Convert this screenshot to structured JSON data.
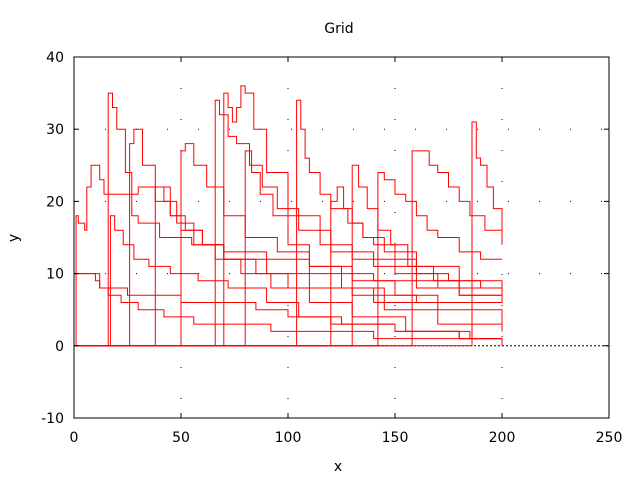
{
  "chart_data": {
    "type": "line",
    "title": "Grid",
    "xlabel": "x",
    "ylabel": "y",
    "xlim": [
      0,
      250
    ],
    "ylim": [
      -10,
      40
    ],
    "xticks": [
      0,
      50,
      100,
      150,
      200,
      250
    ],
    "xtick_labels": [
      "0",
      "50",
      "100",
      "150",
      "200",
      "250"
    ],
    "yticks": [
      -10,
      0,
      10,
      20,
      30,
      40
    ],
    "ytick_labels": [
      "-10",
      "0",
      "10",
      "20",
      "30",
      "40"
    ],
    "grid": "dotted",
    "legend": "none",
    "series_color": "#ff0000",
    "zero_line": {
      "y": 0,
      "color": "#000000"
    },
    "series": [
      {
        "x": [
          0,
          1,
          2,
          5,
          6,
          8,
          12,
          14,
          30,
          45,
          50,
          60,
          70,
          90,
          110,
          140,
          160,
          180,
          200
        ],
        "y": [
          0,
          18,
          17,
          16,
          22,
          25,
          23,
          21,
          22,
          18,
          16,
          14,
          13,
          12,
          10,
          9,
          8,
          8,
          8
        ]
      },
      {
        "x": [
          0,
          15,
          16,
          18,
          20,
          24,
          27,
          30,
          40,
          55,
          70,
          85,
          100,
          130,
          160,
          200
        ],
        "y": [
          0,
          0,
          35,
          33,
          30,
          24,
          18,
          17,
          15,
          14,
          12,
          10,
          8,
          7,
          6,
          6
        ]
      },
      {
        "x": [
          0,
          24,
          26,
          28,
          32,
          38,
          45,
          52,
          60,
          70,
          90,
          110,
          140,
          170,
          200
        ],
        "y": [
          0,
          0,
          28,
          30,
          25,
          20,
          18,
          16,
          14,
          12,
          10,
          8,
          6,
          5,
          2
        ]
      },
      {
        "x": [
          0,
          48,
          50,
          52,
          56,
          62,
          70,
          80,
          95,
          110,
          130,
          150,
          170,
          200
        ],
        "y": [
          0,
          0,
          27,
          28,
          25,
          22,
          18,
          15,
          13,
          11,
          9,
          7,
          6,
          7
        ]
      },
      {
        "x": [
          0,
          68,
          70,
          72,
          74,
          76,
          78,
          80,
          84,
          90,
          100,
          115,
          130,
          150,
          170,
          190,
          200
        ],
        "y": [
          0,
          0,
          35,
          33,
          31,
          33,
          36,
          35,
          30,
          24,
          18,
          14,
          12,
          10,
          8,
          8,
          8
        ]
      },
      {
        "x": [
          0,
          64,
          66,
          68,
          72,
          76,
          82,
          88,
          95,
          105,
          120,
          140,
          160,
          180,
          200
        ],
        "y": [
          0,
          0,
          34,
          32,
          29,
          28,
          25,
          22,
          19,
          16,
          13,
          11,
          9,
          7,
          6
        ]
      },
      {
        "x": [
          0,
          103,
          104,
          106,
          108,
          110,
          115,
          120,
          128,
          135,
          145,
          160,
          180,
          200
        ],
        "y": [
          0,
          0,
          34,
          30,
          26,
          24,
          21,
          19,
          17,
          15,
          13,
          11,
          9,
          8
        ]
      },
      {
        "x": [
          0,
          118,
          120,
          123,
          126,
          130,
          135,
          140,
          150,
          160,
          175,
          190,
          200
        ],
        "y": [
          0,
          0,
          20,
          22,
          19,
          17,
          15,
          14,
          12,
          10,
          9,
          8,
          7
        ]
      },
      {
        "x": [
          0,
          140,
          142,
          145,
          150,
          155,
          160,
          165,
          170,
          180,
          190,
          200
        ],
        "y": [
          0,
          0,
          24,
          23,
          21,
          20,
          18,
          16,
          15,
          13,
          12,
          12
        ]
      },
      {
        "x": [
          0,
          156,
          158,
          162,
          166,
          170,
          175,
          180,
          185,
          192,
          200
        ],
        "y": [
          0,
          0,
          27,
          27,
          25,
          24,
          22,
          20,
          18,
          16,
          14
        ]
      },
      {
        "x": [
          0,
          184,
          186,
          188,
          190,
          193,
          196,
          200
        ],
        "y": [
          0,
          0,
          31,
          26,
          25,
          22,
          19,
          16
        ]
      },
      {
        "x": [
          0,
          8,
          10,
          12,
          18,
          25,
          35,
          50,
          65,
          85,
          100,
          120,
          150,
          180,
          200
        ],
        "y": [
          10,
          10,
          9,
          8,
          8,
          7,
          7,
          6,
          6,
          5,
          4,
          3,
          2,
          1,
          0
        ]
      },
      {
        "x": [
          0,
          16,
          17,
          19,
          23,
          28,
          35,
          45,
          58,
          72,
          90,
          105,
          125,
          150,
          180,
          200
        ],
        "y": [
          0,
          0,
          18,
          16,
          14,
          12,
          11,
          10,
          9,
          8,
          6,
          4,
          3,
          2,
          1,
          0
        ]
      },
      {
        "x": [
          0,
          36,
          38,
          42,
          48,
          56,
          66,
          78,
          92,
          110,
          130,
          155,
          185,
          200
        ],
        "y": [
          0,
          0,
          22,
          20,
          17,
          14,
          12,
          10,
          8,
          6,
          4,
          2,
          1,
          0
        ]
      },
      {
        "x": [
          0,
          78,
          80,
          83,
          87,
          93,
          100,
          110,
          125,
          145,
          170,
          200
        ],
        "y": [
          0,
          0,
          27,
          24,
          21,
          18,
          14,
          11,
          8,
          5,
          3,
          2
        ]
      },
      {
        "x": [
          0,
          128,
          130,
          133,
          137,
          142,
          148,
          156,
          168,
          180,
          200
        ],
        "y": [
          0,
          0,
          25,
          22,
          19,
          16,
          14,
          11,
          9,
          7,
          6
        ]
      },
      {
        "x": [
          0,
          10,
          12,
          16,
          22,
          30,
          42,
          56,
          72,
          92,
          116,
          140,
          160,
          180,
          200
        ],
        "y": [
          10,
          10,
          8,
          7,
          6,
          5,
          4,
          3,
          3,
          2,
          2,
          1,
          1,
          1,
          0
        ]
      }
    ]
  }
}
